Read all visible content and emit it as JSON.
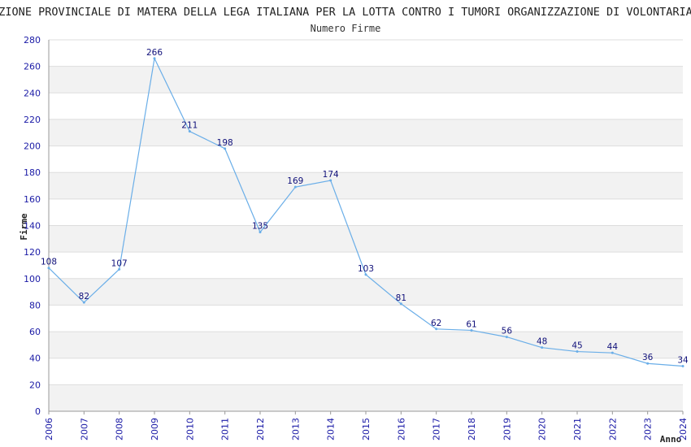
{
  "chart_data": {
    "type": "line",
    "title": "SEZIONE PROVINCIALE DI MATERA DELLA LEGA ITALIANA PER LA LOTTA CONTRO I TUMORI ORGANIZZAZIONE DI VOLONTARIATO",
    "subtitle": "Numero Firme",
    "xlabel": "Anno",
    "ylabel": "Firme",
    "ylim": [
      0,
      280
    ],
    "yticks": [
      0,
      20,
      40,
      60,
      80,
      100,
      120,
      140,
      160,
      180,
      200,
      220,
      240,
      260,
      280
    ],
    "grid": true,
    "line_color": "#6aaee8",
    "band_color": "#f2f2f2",
    "tick_color": "#1a1aa6",
    "series": [
      {
        "x": [
          2006,
          2007,
          2008,
          2009,
          2010,
          2011,
          2012,
          2013,
          2014,
          2015,
          2016,
          2017,
          2018,
          2019,
          2020,
          2021,
          2022,
          2023,
          2024
        ],
        "values": [
          108,
          82,
          107,
          266,
          211,
          198,
          135,
          169,
          174,
          103,
          81,
          62,
          61,
          56,
          48,
          45,
          44,
          36,
          34
        ]
      }
    ]
  }
}
